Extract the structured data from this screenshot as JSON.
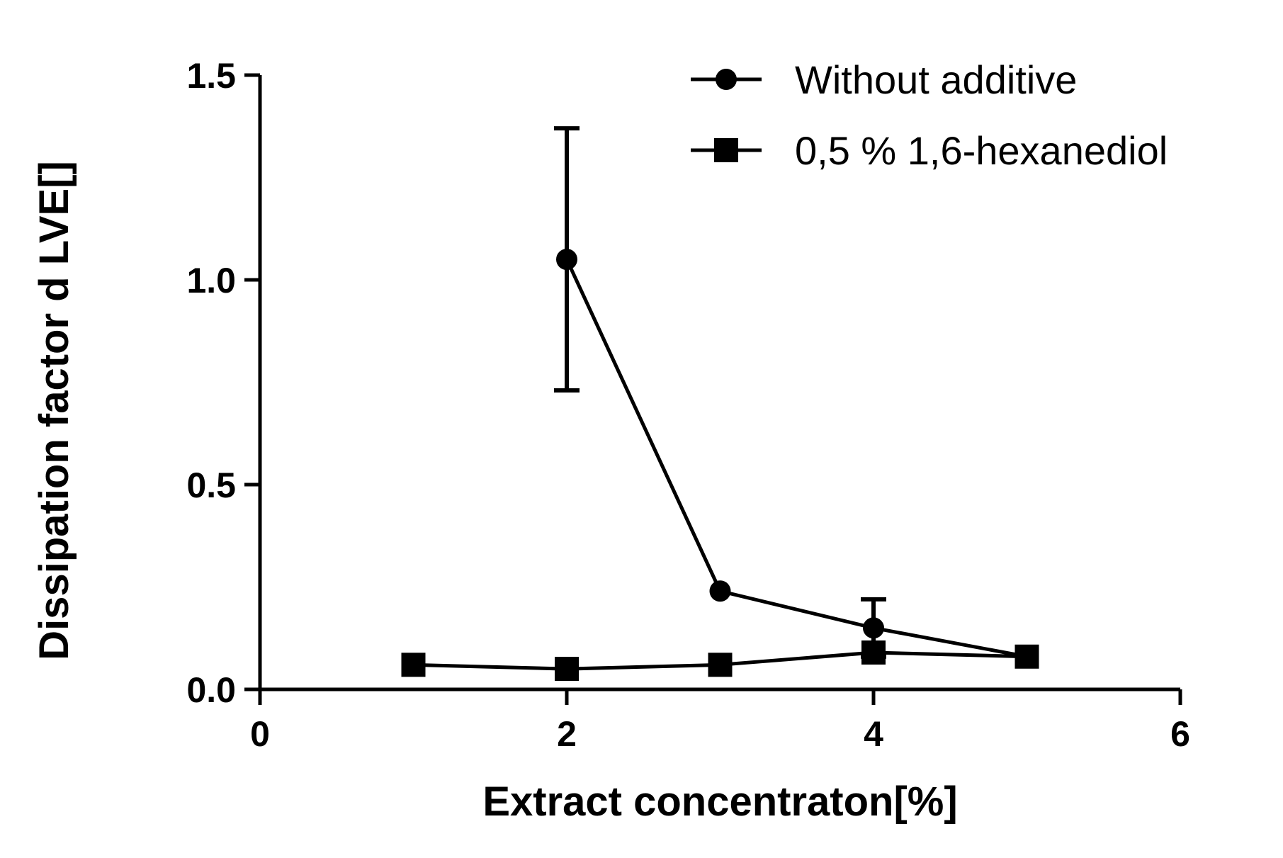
{
  "chart_data": {
    "type": "line",
    "title": "",
    "xlabel": "Extract concentraton[%]",
    "ylabel": "Dissipation factor d LVE[]",
    "xlim": [
      0,
      6
    ],
    "ylim": [
      0,
      1.5
    ],
    "x_ticks": [
      0,
      2,
      4,
      6
    ],
    "x_tick_labels": [
      "0",
      "2",
      "4",
      "6"
    ],
    "y_ticks": [
      0,
      0.5,
      1.0,
      1.5
    ],
    "y_tick_labels": [
      "0.0",
      "0.5",
      "1.0",
      "1.5"
    ],
    "grid": false,
    "legend_position": "top-right",
    "series": [
      {
        "name": "Without additive",
        "marker": "circle",
        "color": "#000000",
        "x": [
          2,
          3,
          4,
          5
        ],
        "y": [
          1.05,
          0.24,
          0.15,
          0.08
        ],
        "error": [
          0.32,
          0.0,
          0.07,
          0.0
        ]
      },
      {
        "name": "0,5 % 1,6-hexanediol",
        "marker": "square",
        "color": "#000000",
        "x": [
          1,
          2,
          3,
          4,
          5
        ],
        "y": [
          0.06,
          0.05,
          0.06,
          0.09,
          0.08
        ],
        "error": [
          0.0,
          0.0,
          0.0,
          0.0,
          0.0
        ]
      }
    ]
  }
}
